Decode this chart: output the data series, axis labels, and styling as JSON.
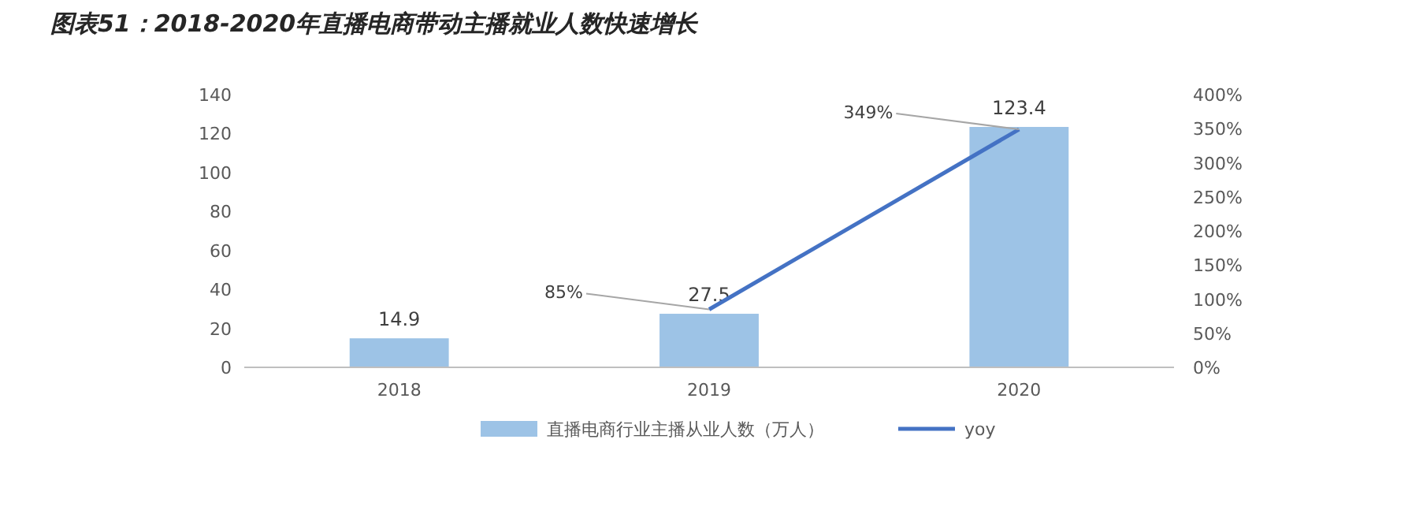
{
  "chart_data": {
    "type": "bar",
    "title": "图表51：2018-2020年直播电商带动主播就业人数快速增长",
    "categories": [
      "2018",
      "2019",
      "2020"
    ],
    "series": [
      {
        "name": "直播电商行业主播从业人数（万人）",
        "color": "#9dc3e6",
        "values": [
          14.9,
          27.5,
          123.4
        ],
        "value_labels": [
          "14.9",
          "27.5",
          "123.4"
        ]
      },
      {
        "name": "yoy",
        "type": "line",
        "axis": "y2",
        "color": "#4472c4",
        "values": [
          null,
          85,
          349
        ],
        "value_labels": [
          null,
          "85%",
          "349%"
        ]
      }
    ],
    "ylim": [
      0,
      140
    ],
    "yticks": [
      0,
      20,
      40,
      60,
      80,
      100,
      120,
      140
    ],
    "y2lim": [
      0,
      400
    ],
    "y2ticks": [
      {
        "value": 0,
        "label": "0%"
      },
      {
        "value": 50,
        "label": "50%"
      },
      {
        "value": 100,
        "label": "100%"
      },
      {
        "value": 150,
        "label": "150%"
      },
      {
        "value": 200,
        "label": "200%"
      },
      {
        "value": 250,
        "label": "250%"
      },
      {
        "value": 300,
        "label": "300%"
      },
      {
        "value": 350,
        "label": "350%"
      },
      {
        "value": 400,
        "label": "400%"
      }
    ],
    "grid": false,
    "legend": "bottom",
    "marker": "none",
    "line_style": "solid"
  }
}
